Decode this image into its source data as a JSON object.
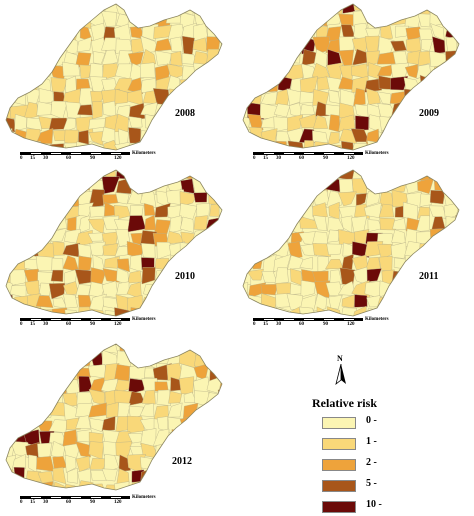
{
  "panels": [
    {
      "year": "2008"
    },
    {
      "year": "2009"
    },
    {
      "year": "2010"
    },
    {
      "year": "2011"
    },
    {
      "year": "2012"
    }
  ],
  "scale_bar": {
    "ticks": [
      "0",
      "15",
      "30",
      "60",
      "90",
      "120"
    ],
    "unit": "Kilometers"
  },
  "north_arrow": {
    "label": "N"
  },
  "legend": {
    "title": "Relative risk",
    "classes": [
      {
        "label": "0 -",
        "color": "#fbf5b3"
      },
      {
        "label": "1 -",
        "color": "#f9d879"
      },
      {
        "label": "2 -",
        "color": "#eea33b"
      },
      {
        "label": "5 -",
        "color": "#a8561a"
      },
      {
        "label": "10 -",
        "color": "#6b0a08"
      }
    ]
  }
}
